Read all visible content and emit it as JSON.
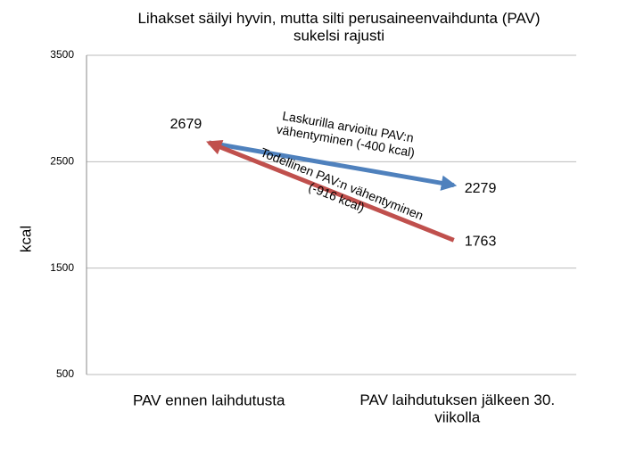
{
  "chart_data": {
    "type": "line",
    "title": "Lihakset säilyi hyvin, mutta silti perusaineenvaihdunta (PAV)\nsukelsi rajusti",
    "ylabel": "kcal",
    "categories": [
      "PAV ennen laihdutusta",
      "PAV laihdutuksen jälkeen 30.\nviikolla"
    ],
    "series": [
      {
        "name": "Laskurilla arvioitu PAV:n\nvähentyminen (-400 kcal)",
        "color": "#4f81bd",
        "values": [
          2679,
          2279
        ],
        "arrow": "end"
      },
      {
        "name": "Todellinen PAV:n vähentyminen\n(-916 kcal)",
        "color": "#c0504d",
        "values": [
          2679,
          1763
        ],
        "arrow": "start"
      }
    ],
    "ylim": [
      500,
      3500
    ],
    "yticks": [
      500,
      1500,
      2500,
      3500
    ],
    "grid": true
  }
}
